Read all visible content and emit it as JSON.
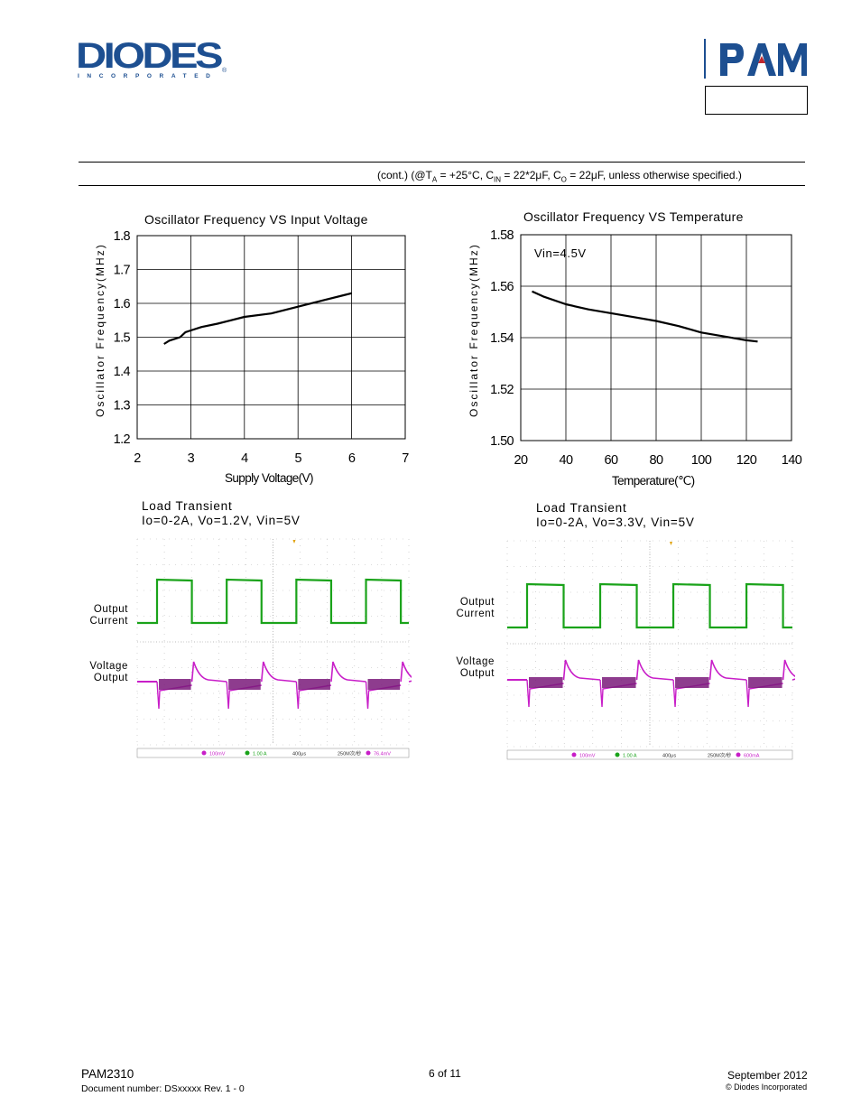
{
  "header": {
    "logo_left": "DIODES",
    "logo_left_sub": "INCORPORATED",
    "logo_right": "PAM"
  },
  "section": {
    "conditions_prefix": "(cont.) (@T",
    "conditions_ta_sub": "A",
    "conditions_mid1": " = +25°C, C",
    "conditions_cin_sub": "IN",
    "conditions_mid2": " = 22*2μF, C",
    "conditions_co_sub": "O",
    "conditions_suffix": " = 22μF, unless otherwise specified.)"
  },
  "chart_data": [
    {
      "type": "line",
      "title": "Oscillator Frequency VS Input Voltage",
      "xlabel": "Supply Voltage(V)",
      "ylabel": "Oscillator Frequency(MHz)",
      "xlim": [
        2,
        7
      ],
      "ylim": [
        1.2,
        1.8
      ],
      "xticks": [
        "2",
        "3",
        "4",
        "5",
        "6",
        "7"
      ],
      "yticks": [
        "1.8",
        "1.7",
        "1.6",
        "1.5",
        "1.4",
        "1.3",
        "1.2"
      ],
      "grid": true,
      "annotation": "",
      "series": [
        {
          "x": [
            2.5,
            2.6,
            2.8,
            2.9,
            3.0,
            3.2,
            3.5,
            4.0,
            4.5,
            5.0,
            5.5,
            6.0
          ],
          "y": [
            1.48,
            1.49,
            1.5,
            1.515,
            1.52,
            1.53,
            1.54,
            1.56,
            1.57,
            1.59,
            1.61,
            1.63
          ]
        }
      ]
    },
    {
      "type": "line",
      "title": "Oscillator Frequency VS Temperature",
      "xlabel": "Temperature(℃)",
      "ylabel": "Oscillator Frequency(MHz)",
      "xlim": [
        20,
        140
      ],
      "ylim": [
        1.5,
        1.58
      ],
      "xticks": [
        "20",
        "40",
        "60",
        "80",
        "100",
        "120",
        "140"
      ],
      "yticks": [
        "1.58",
        "1.56",
        "1.54",
        "1.52",
        "1.50"
      ],
      "grid": true,
      "annotation": "Vin=4.5V",
      "series": [
        {
          "x": [
            25,
            30,
            40,
            50,
            60,
            70,
            80,
            90,
            100,
            110,
            120,
            125
          ],
          "y": [
            1.558,
            1.556,
            1.553,
            1.551,
            1.5495,
            1.548,
            1.5465,
            1.5445,
            1.542,
            1.5405,
            1.539,
            1.5385
          ]
        }
      ]
    }
  ],
  "scopes": [
    {
      "title_line1": "Load Transient",
      "title_line2": "Io=0-2A, Vo=1.2V, Vin=5V",
      "label_output_current_1": "Output",
      "label_output_current_2": "Current",
      "label_voltage_output_1": "Voltage",
      "label_voltage_output_2": "Output",
      "status_ch1": "100mV",
      "status_ch2": "1.00 A",
      "status_time": "400μs",
      "status_rate": "250M次/秒",
      "status_trig": "76.4mV"
    },
    {
      "title_line1": "Load Transient",
      "title_line2": "Io=0-2A, Vo=3.3V, Vin=5V",
      "label_output_current_1": "Output",
      "label_output_current_2": "Current",
      "label_voltage_output_1": "Voltage",
      "label_voltage_output_2": "Output",
      "status_ch1": "100mV",
      "status_ch2": "1.00 A",
      "status_time": "400μs",
      "status_rate": "250M次/秒",
      "status_trig": "600mA"
    }
  ],
  "footer": {
    "part": "PAM2310",
    "docnum": "Document number: DSxxxxx Rev. 1 - 0",
    "page": "6 of 11",
    "date": "September 2012",
    "copyright": "© Diodes Incorporated"
  },
  "colors": {
    "logo_blue": "#1d4f91",
    "pam_red": "#c0272d",
    "trace_green": "#1aa31a",
    "trace_magenta": "#c81ec8"
  }
}
